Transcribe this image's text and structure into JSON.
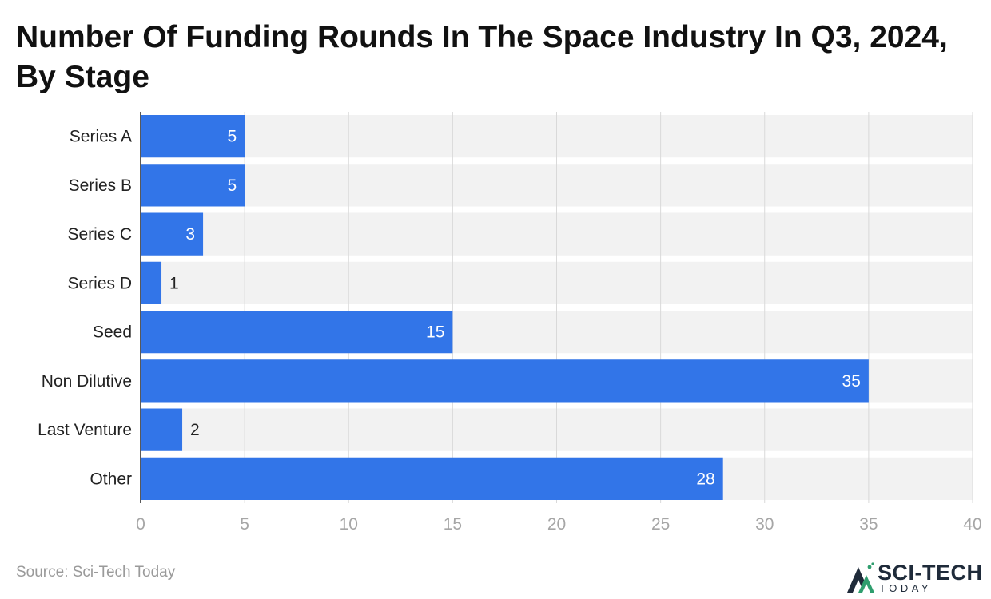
{
  "chart_data": {
    "type": "bar",
    "orientation": "horizontal",
    "title": "Number Of Funding Rounds In The Space Industry In Q3, 2024, By Stage",
    "categories": [
      "Series A",
      "Series B",
      "Series C",
      "Series D",
      "Seed",
      "Non Dilutive",
      "Last Venture",
      "Other"
    ],
    "values": [
      5,
      5,
      3,
      1,
      15,
      35,
      2,
      28
    ],
    "xlim": [
      0,
      40
    ],
    "xticks": [
      0,
      5,
      10,
      15,
      20,
      25,
      30,
      35,
      40
    ],
    "xlabel": "",
    "ylabel": "",
    "grid": true,
    "data_labels": true,
    "colors": {
      "bar": "#3275e8",
      "band": "#f2f2f2",
      "grid": "#d9d9d9",
      "tick_label": "#a6a6a6"
    }
  },
  "footer": {
    "source": "Source: Sci-Tech Today"
  },
  "logo": {
    "name": "SCI-TECH",
    "sub": "TODAY",
    "icon": "mountain-logo-icon"
  }
}
